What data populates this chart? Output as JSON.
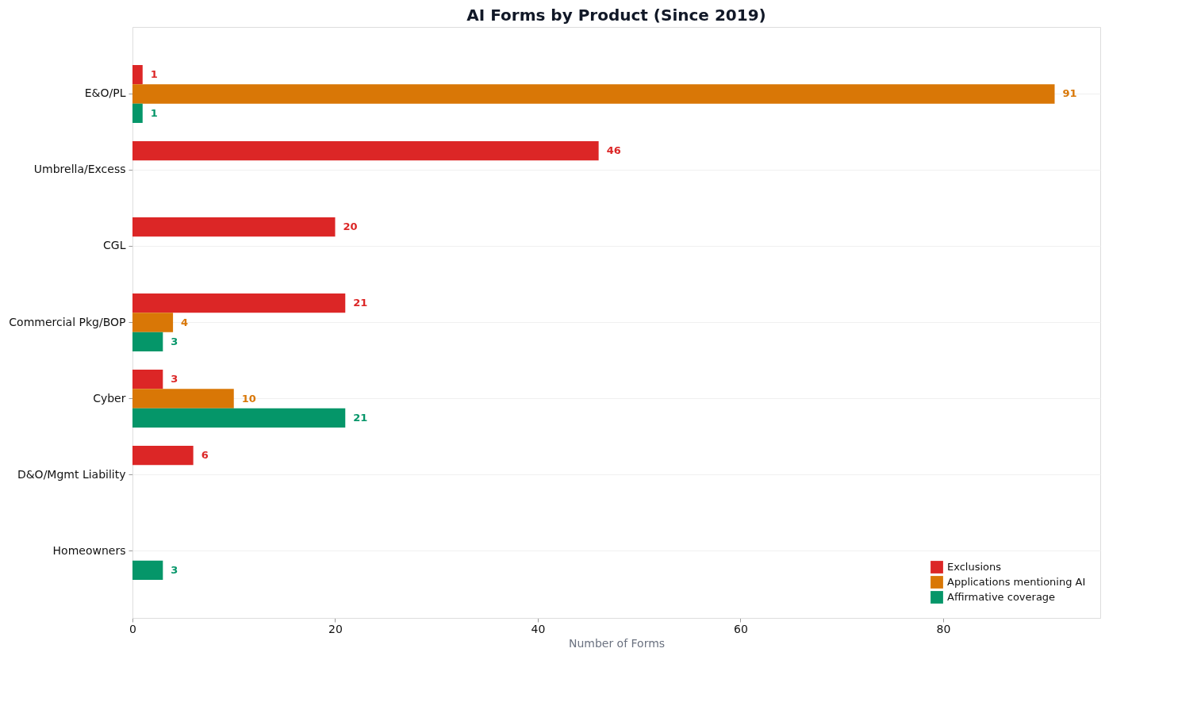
{
  "chart_data": {
    "type": "bar",
    "orientation": "horizontal",
    "title": "AI Forms by Product (Since 2019)",
    "xlabel": "Number of Forms",
    "categories": [
      "E&O/PL",
      "Umbrella/Excess",
      "CGL",
      "Commercial Pkg/BOP",
      "Cyber",
      "D&O/Mgmt Liability",
      "Homeowners"
    ],
    "series": [
      {
        "name": "Exclusions",
        "color": "#dc2626",
        "values": [
          1,
          46,
          20,
          21,
          3,
          6,
          null
        ]
      },
      {
        "name": "Applications mentioning AI",
        "color": "#d97706",
        "values": [
          91,
          null,
          null,
          4,
          10,
          null,
          null
        ]
      },
      {
        "name": "Affirmative coverage",
        "color": "#059669",
        "values": [
          1,
          null,
          null,
          3,
          21,
          null,
          3
        ]
      }
    ],
    "xlim": [
      0,
      95.5
    ],
    "xticks": [
      0,
      20,
      40,
      60,
      80
    ],
    "grid": "y",
    "legend": "bottom right",
    "data_labels": true
  }
}
